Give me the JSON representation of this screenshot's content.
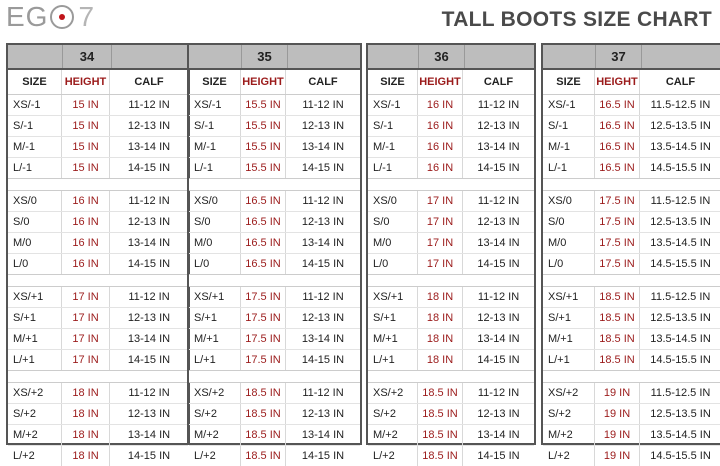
{
  "logo": {
    "text_left": "EG",
    "text_right": "7"
  },
  "title": "TALL BOOTS SIZE CHART",
  "columns": {
    "size": "SIZE",
    "height": "HEIGHT",
    "calf": "CALF"
  },
  "colors": {
    "height_text": "#9b1b1b",
    "logo_dot": "#c0141a",
    "header_bg": "#bdbdbd",
    "border": "#555555"
  },
  "tables": [
    {
      "size": "34",
      "groups": [
        [
          [
            "XS/-1",
            "15 IN",
            "11-12 IN"
          ],
          [
            "S/-1",
            "15 IN",
            "12-13 IN"
          ],
          [
            "M/-1",
            "15 IN",
            "13-14 IN"
          ],
          [
            "L/-1",
            "15 IN",
            "14-15 IN"
          ]
        ],
        [
          [
            "XS/0",
            "16 IN",
            "11-12 IN"
          ],
          [
            "S/0",
            "16 IN",
            "12-13 IN"
          ],
          [
            "M/0",
            "16 IN",
            "13-14 IN"
          ],
          [
            "L/0",
            "16 IN",
            "14-15 IN"
          ]
        ],
        [
          [
            "XS/+1",
            "17 IN",
            "11-12 IN"
          ],
          [
            "S/+1",
            "17 IN",
            "12-13 IN"
          ],
          [
            "M/+1",
            "17 IN",
            "13-14 IN"
          ],
          [
            "L/+1",
            "17 IN",
            "14-15 IN"
          ]
        ],
        [
          [
            "XS/+2",
            "18 IN",
            "11-12 IN"
          ],
          [
            "S/+2",
            "18 IN",
            "12-13 IN"
          ],
          [
            "M/+2",
            "18 IN",
            "13-14 IN"
          ],
          [
            "L/+2",
            "18 IN",
            "14-15 IN"
          ]
        ]
      ]
    },
    {
      "size": "35",
      "groups": [
        [
          [
            "XS/-1",
            "15.5 IN",
            "11-12 IN"
          ],
          [
            "S/-1",
            "15.5 IN",
            "12-13 IN"
          ],
          [
            "M/-1",
            "15.5 IN",
            "13-14 IN"
          ],
          [
            "L/-1",
            "15.5 IN",
            "14-15 IN"
          ]
        ],
        [
          [
            "XS/0",
            "16.5 IN",
            "11-12 IN"
          ],
          [
            "S/0",
            "16.5 IN",
            "12-13 IN"
          ],
          [
            "M/0",
            "16.5 IN",
            "13-14 IN"
          ],
          [
            "L/0",
            "16.5 IN",
            "14-15 IN"
          ]
        ],
        [
          [
            "XS/+1",
            "17.5 IN",
            "11-12 IN"
          ],
          [
            "S/+1",
            "17.5 IN",
            "12-13 IN"
          ],
          [
            "M/+1",
            "17.5 IN",
            "13-14 IN"
          ],
          [
            "L/+1",
            "17.5 IN",
            "14-15 IN"
          ]
        ],
        [
          [
            "XS/+2",
            "18.5 IN",
            "11-12 IN"
          ],
          [
            "S/+2",
            "18.5 IN",
            "12-13 IN"
          ],
          [
            "M/+2",
            "18.5 IN",
            "13-14 IN"
          ],
          [
            "L/+2",
            "18.5 IN",
            "14-15 IN"
          ]
        ]
      ]
    },
    {
      "size": "36",
      "groups": [
        [
          [
            "XS/-1",
            "16 IN",
            "11-12 IN"
          ],
          [
            "S/-1",
            "16 IN",
            "12-13 IN"
          ],
          [
            "M/-1",
            "16 IN",
            "13-14 IN"
          ],
          [
            "L/-1",
            "16 IN",
            "14-15 IN"
          ]
        ],
        [
          [
            "XS/0",
            "17 IN",
            "11-12 IN"
          ],
          [
            "S/0",
            "17 IN",
            "12-13 IN"
          ],
          [
            "M/0",
            "17 IN",
            "13-14 IN"
          ],
          [
            "L/0",
            "17 IN",
            "14-15 IN"
          ]
        ],
        [
          [
            "XS/+1",
            "18 IN",
            "11-12 IN"
          ],
          [
            "S/+1",
            "18 IN",
            "12-13 IN"
          ],
          [
            "M/+1",
            "18 IN",
            "13-14 IN"
          ],
          [
            "L/+1",
            "18 IN",
            "14-15 IN"
          ]
        ],
        [
          [
            "XS/+2",
            "18.5 IN",
            "11-12 IN"
          ],
          [
            "S/+2",
            "18.5 IN",
            "12-13 IN"
          ],
          [
            "M/+2",
            "18.5 IN",
            "13-14 IN"
          ],
          [
            "L/+2",
            "18.5 IN",
            "14-15 IN"
          ]
        ]
      ]
    },
    {
      "size": "37",
      "groups": [
        [
          [
            "XS/-1",
            "16.5 IN",
            "11.5-12.5 IN"
          ],
          [
            "S/-1",
            "16.5 IN",
            "12.5-13.5 IN"
          ],
          [
            "M/-1",
            "16.5 IN",
            "13.5-14.5 IN"
          ],
          [
            "L/-1",
            "16.5 IN",
            "14.5-15.5 IN"
          ]
        ],
        [
          [
            "XS/0",
            "17.5 IN",
            "11.5-12.5 IN"
          ],
          [
            "S/0",
            "17.5 IN",
            "12.5-13.5 IN"
          ],
          [
            "M/0",
            "17.5 IN",
            "13.5-14.5 IN"
          ],
          [
            "L/0",
            "17.5 IN",
            "14.5-15.5 IN"
          ]
        ],
        [
          [
            "XS/+1",
            "18.5 IN",
            "11.5-12.5 IN"
          ],
          [
            "S/+1",
            "18.5 IN",
            "12.5-13.5 IN"
          ],
          [
            "M/+1",
            "18.5 IN",
            "13.5-14.5 IN"
          ],
          [
            "L/+1",
            "18.5 IN",
            "14.5-15.5 IN"
          ]
        ],
        [
          [
            "XS/+2",
            "19 IN",
            "11.5-12.5 IN"
          ],
          [
            "S/+2",
            "19 IN",
            "12.5-13.5 IN"
          ],
          [
            "M/+2",
            "19 IN",
            "13.5-14.5 IN"
          ],
          [
            "L/+2",
            "19 IN",
            "14.5-15.5 IN"
          ]
        ]
      ]
    }
  ]
}
